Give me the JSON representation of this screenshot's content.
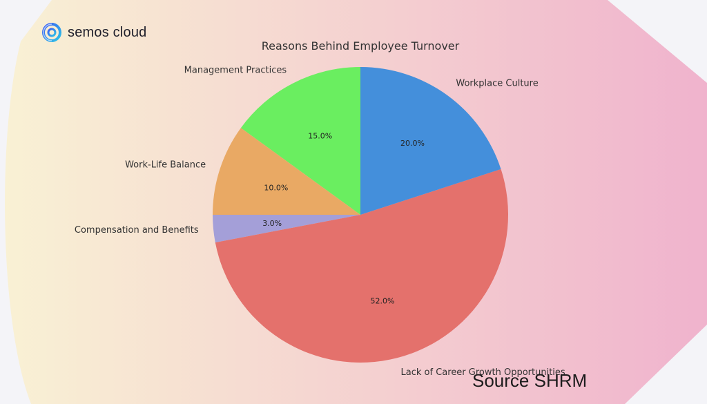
{
  "brand": {
    "name": "semos cloud",
    "logo_icon": "semos-cloud-logo-icon"
  },
  "source_note": "Source SHRM",
  "background": {
    "gradient_start": "#f9f1d4",
    "gradient_end": "#f0b3cd",
    "page": "#f4f4f8"
  },
  "chart_data": {
    "type": "pie",
    "title": "Reasons Behind Employee Turnover",
    "start_angle_deg": 90,
    "direction": "counterclockwise",
    "slices": [
      {
        "label": "Management Practices",
        "value": 15.0,
        "pct_label": "15.0%",
        "color": "#6aee60"
      },
      {
        "label": "Work-Life Balance",
        "value": 10.0,
        "pct_label": "10.0%",
        "color": "#e9a964"
      },
      {
        "label": "Compensation and Benefits",
        "value": 3.0,
        "pct_label": "3.0%",
        "color": "#a49fd8"
      },
      {
        "label": "Lack of Career Growth Opportunities",
        "value": 52.0,
        "pct_label": "52.0%",
        "color": "#e4716c"
      },
      {
        "label": "Workplace Culture",
        "value": 20.0,
        "pct_label": "20.0%",
        "color": "#448fdb"
      }
    ]
  }
}
